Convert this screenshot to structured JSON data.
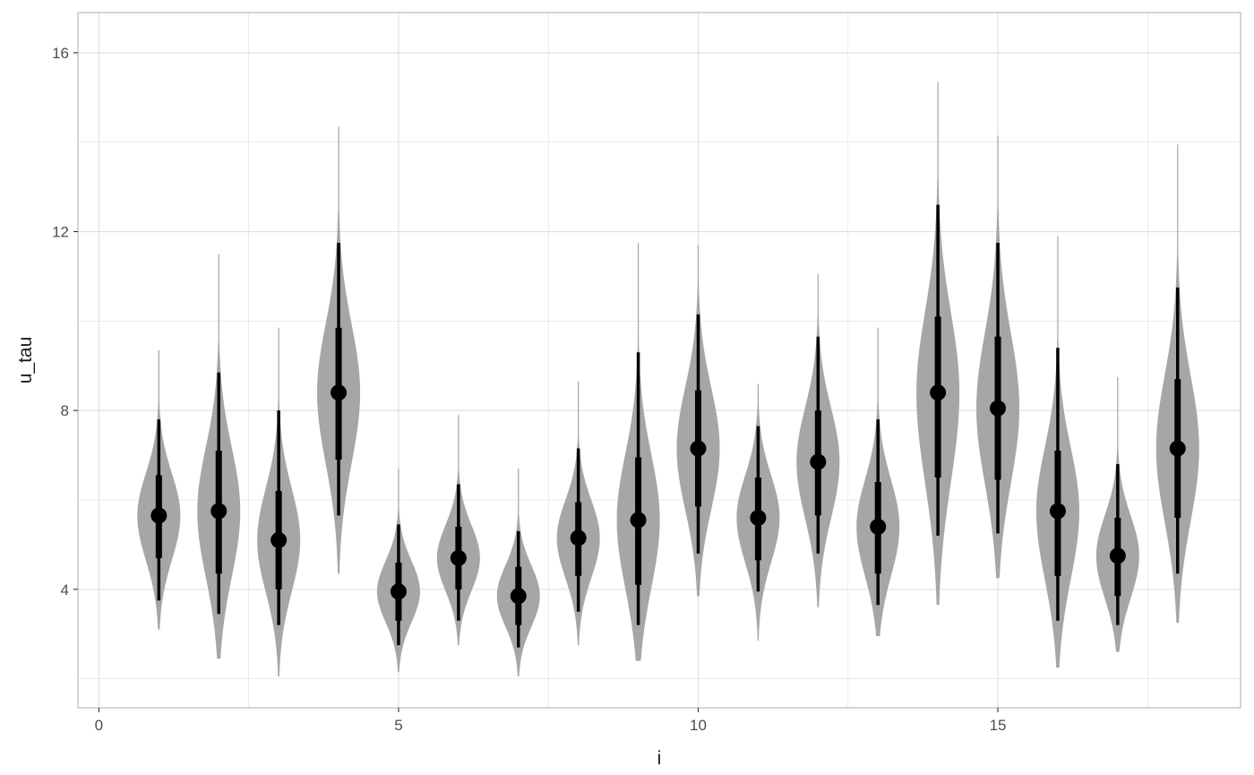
{
  "chart_data": {
    "type": "violin",
    "title": "",
    "xlabel": "i",
    "ylabel": "u_tau",
    "xlim": [
      -0.35,
      19.05
    ],
    "ylim": [
      1.35,
      16.9
    ],
    "x_ticks": [
      0,
      5,
      10,
      15
    ],
    "y_ticks": [
      4,
      8,
      12,
      16
    ],
    "grid": true,
    "legend": "none",
    "colors": {
      "violin": "#a6a6a6",
      "interval": "#000000",
      "grid": "#dedede",
      "panel_border": "#b3b3b3"
    },
    "series": [
      {
        "i": 1,
        "median": 5.65,
        "q66": [
          4.7,
          6.55
        ],
        "q95": [
          3.75,
          7.8
        ],
        "range": [
          3.1,
          9.35
        ]
      },
      {
        "i": 2,
        "median": 5.75,
        "q66": [
          4.35,
          7.1
        ],
        "q95": [
          3.45,
          8.85
        ],
        "range": [
          2.45,
          11.5
        ]
      },
      {
        "i": 3,
        "median": 5.1,
        "q66": [
          4.0,
          6.2
        ],
        "q95": [
          3.2,
          8.0
        ],
        "range": [
          2.05,
          9.85
        ]
      },
      {
        "i": 4,
        "median": 8.4,
        "q66": [
          6.9,
          9.85
        ],
        "q95": [
          5.65,
          11.75
        ],
        "range": [
          4.35,
          14.35
        ]
      },
      {
        "i": 5,
        "median": 3.95,
        "q66": [
          3.3,
          4.6
        ],
        "q95": [
          2.75,
          5.45
        ],
        "range": [
          2.15,
          6.7
        ]
      },
      {
        "i": 6,
        "median": 4.7,
        "q66": [
          4.0,
          5.4
        ],
        "q95": [
          3.3,
          6.35
        ],
        "range": [
          2.75,
          7.9
        ]
      },
      {
        "i": 7,
        "median": 3.85,
        "q66": [
          3.2,
          4.5
        ],
        "q95": [
          2.7,
          5.3
        ],
        "range": [
          2.05,
          6.7
        ]
      },
      {
        "i": 8,
        "median": 5.15,
        "q66": [
          4.3,
          5.95
        ],
        "q95": [
          3.5,
          7.15
        ],
        "range": [
          2.75,
          8.65
        ]
      },
      {
        "i": 9,
        "median": 5.55,
        "q66": [
          4.1,
          6.95
        ],
        "q95": [
          3.2,
          9.3
        ],
        "range": [
          2.4,
          11.75
        ]
      },
      {
        "i": 10,
        "median": 7.15,
        "q66": [
          5.85,
          8.45
        ],
        "q95": [
          4.8,
          10.15
        ],
        "range": [
          3.85,
          11.7
        ]
      },
      {
        "i": 11,
        "median": 5.6,
        "q66": [
          4.65,
          6.5
        ],
        "q95": [
          3.95,
          7.65
        ],
        "range": [
          2.85,
          8.6
        ]
      },
      {
        "i": 12,
        "median": 6.85,
        "q66": [
          5.65,
          8.0
        ],
        "q95": [
          4.8,
          9.65
        ],
        "range": [
          3.6,
          11.05
        ]
      },
      {
        "i": 13,
        "median": 5.4,
        "q66": [
          4.35,
          6.4
        ],
        "q95": [
          3.65,
          7.8
        ],
        "range": [
          2.95,
          9.85
        ]
      },
      {
        "i": 14,
        "median": 8.4,
        "q66": [
          6.5,
          10.1
        ],
        "q95": [
          5.2,
          12.6
        ],
        "range": [
          3.65,
          15.35
        ]
      },
      {
        "i": 15,
        "median": 8.05,
        "q66": [
          6.45,
          9.65
        ],
        "q95": [
          5.25,
          11.75
        ],
        "range": [
          4.25,
          14.15
        ]
      },
      {
        "i": 16,
        "median": 5.75,
        "q66": [
          4.3,
          7.1
        ],
        "q95": [
          3.3,
          9.4
        ],
        "range": [
          2.25,
          11.9
        ]
      },
      {
        "i": 17,
        "median": 4.75,
        "q66": [
          3.85,
          5.6
        ],
        "q95": [
          3.2,
          6.8
        ],
        "range": [
          2.6,
          8.75
        ]
      },
      {
        "i": 18,
        "median": 7.15,
        "q66": [
          5.6,
          8.7
        ],
        "q95": [
          4.35,
          10.75
        ],
        "range": [
          3.25,
          13.95
        ]
      }
    ]
  }
}
